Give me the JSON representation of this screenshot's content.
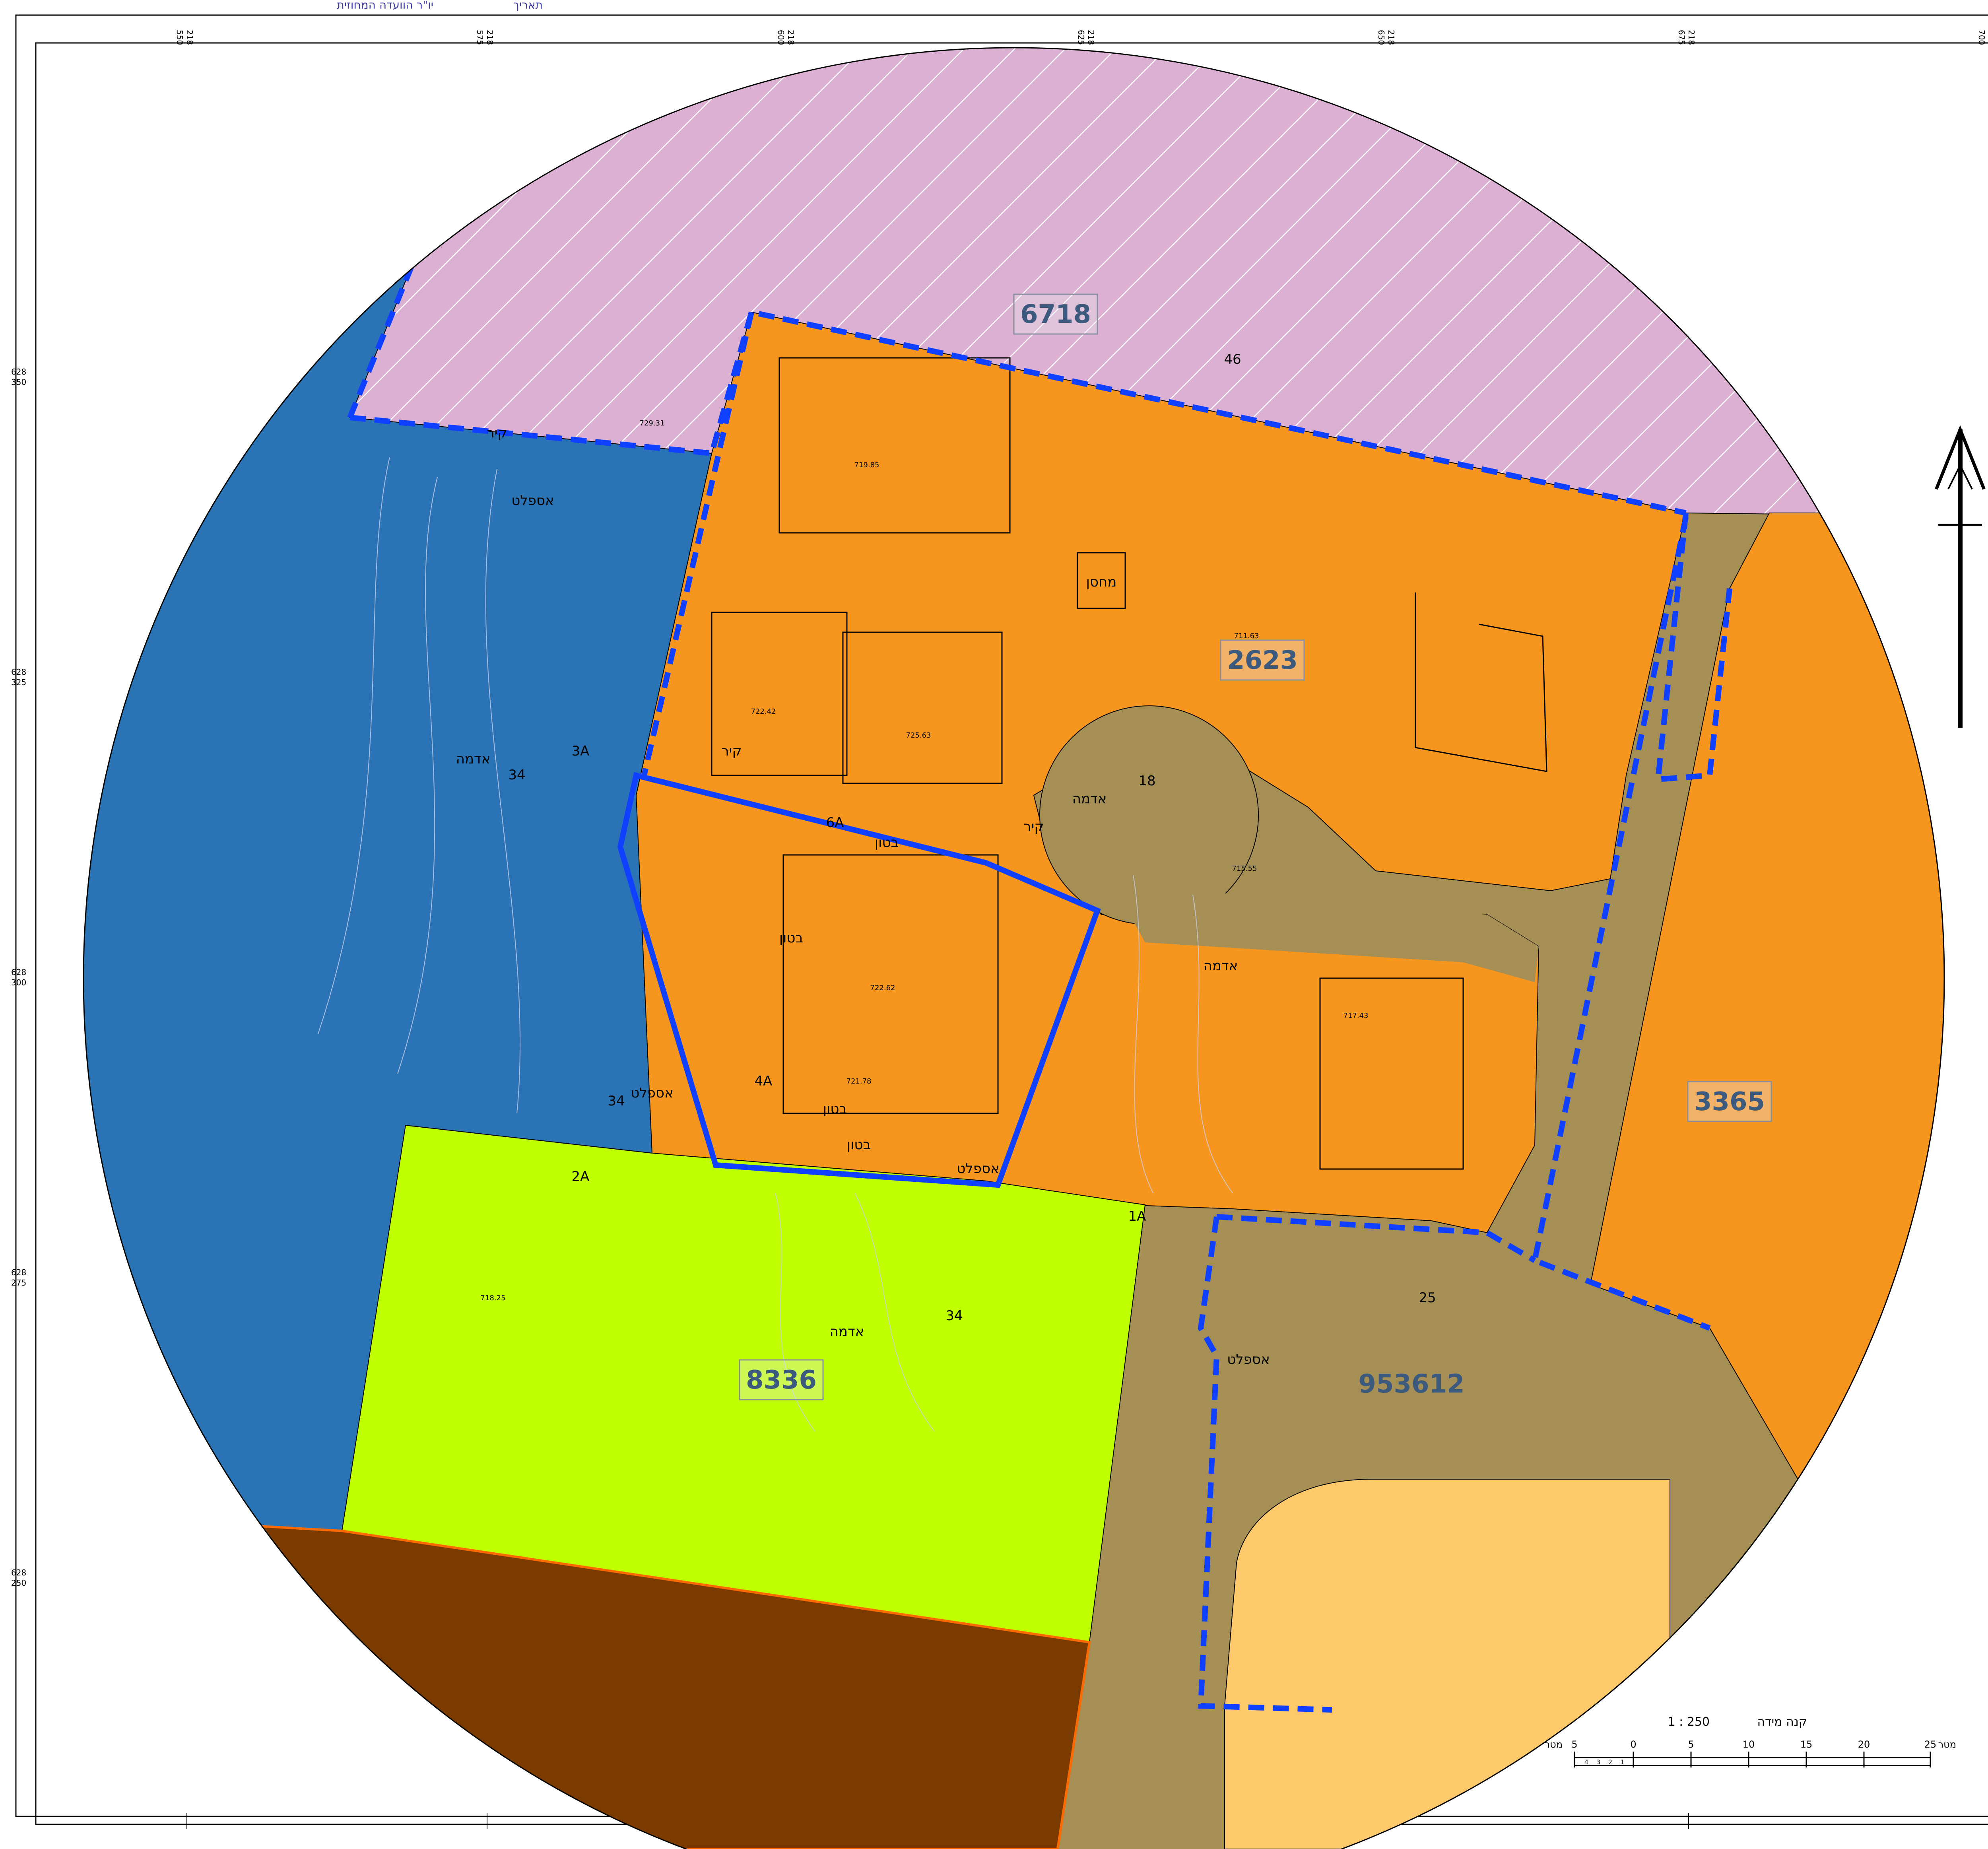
{
  "header": {
    "date_label": "תאריך",
    "committee_label": "יו\"ר הוועדה המחוזית"
  },
  "grid": {
    "top_labels": [
      {
        "a": "218",
        "b": "550"
      },
      {
        "a": "218",
        "b": "575"
      },
      {
        "a": "218",
        "b": "600"
      },
      {
        "a": "218",
        "b": "625"
      },
      {
        "a": "218",
        "b": "650"
      },
      {
        "a": "218",
        "b": "675"
      },
      {
        "a": "218",
        "b": "700"
      }
    ],
    "left_labels": [
      {
        "a": "628",
        "b": "350"
      },
      {
        "a": "628",
        "b": "325"
      },
      {
        "a": "628",
        "b": "300"
      },
      {
        "a": "628",
        "b": "275"
      },
      {
        "a": "628",
        "b": "250"
      }
    ]
  },
  "parcels": [
    {
      "id": "6718"
    },
    {
      "id": "2623"
    },
    {
      "id": "3365"
    },
    {
      "id": "8336"
    },
    {
      "id": "953612"
    }
  ],
  "labels": {
    "storage": "מחסן",
    "soil": "אדמה",
    "asphalt": "אספלט",
    "wall": "קיר",
    "concrete": "בטון",
    "block_no_46": "46",
    "block_no_18": "18",
    "block_no_34": "34",
    "block_no_25": "25",
    "code_3A": "3A",
    "code_2A": "2A",
    "code_1A": "1A",
    "code_4A": "4A",
    "code_6A": "6A",
    "elev_1": "729.31",
    "elev_2": "719.85",
    "elev_3": "722.42",
    "elev_4": "725.63",
    "elev_5": "722.62",
    "elev_6": "721.78",
    "elev_7": "715.55",
    "elev_8": "717.43",
    "elev_9": "711.63",
    "elev_10": "718.25"
  },
  "scale": {
    "title": "קנה מידה",
    "ratio": "1 : 250",
    "unit_left": "מטר",
    "unit_right": "מטר",
    "ticks": [
      "5",
      "0",
      "5",
      "10",
      "15",
      "20",
      "25"
    ],
    "sub_ticks": [
      "4",
      "3",
      "2",
      "1"
    ]
  },
  "colors": {
    "residential_orange": "#f7961f",
    "public_pink": "#dbb0d2",
    "open_blue": "#2a74b6",
    "road_brown": "#a68f54",
    "lime": "#bfff00",
    "dark_brown": "#7b3a00",
    "light_orange": "#fdc96a",
    "boundary_blue": "#1040ff"
  }
}
